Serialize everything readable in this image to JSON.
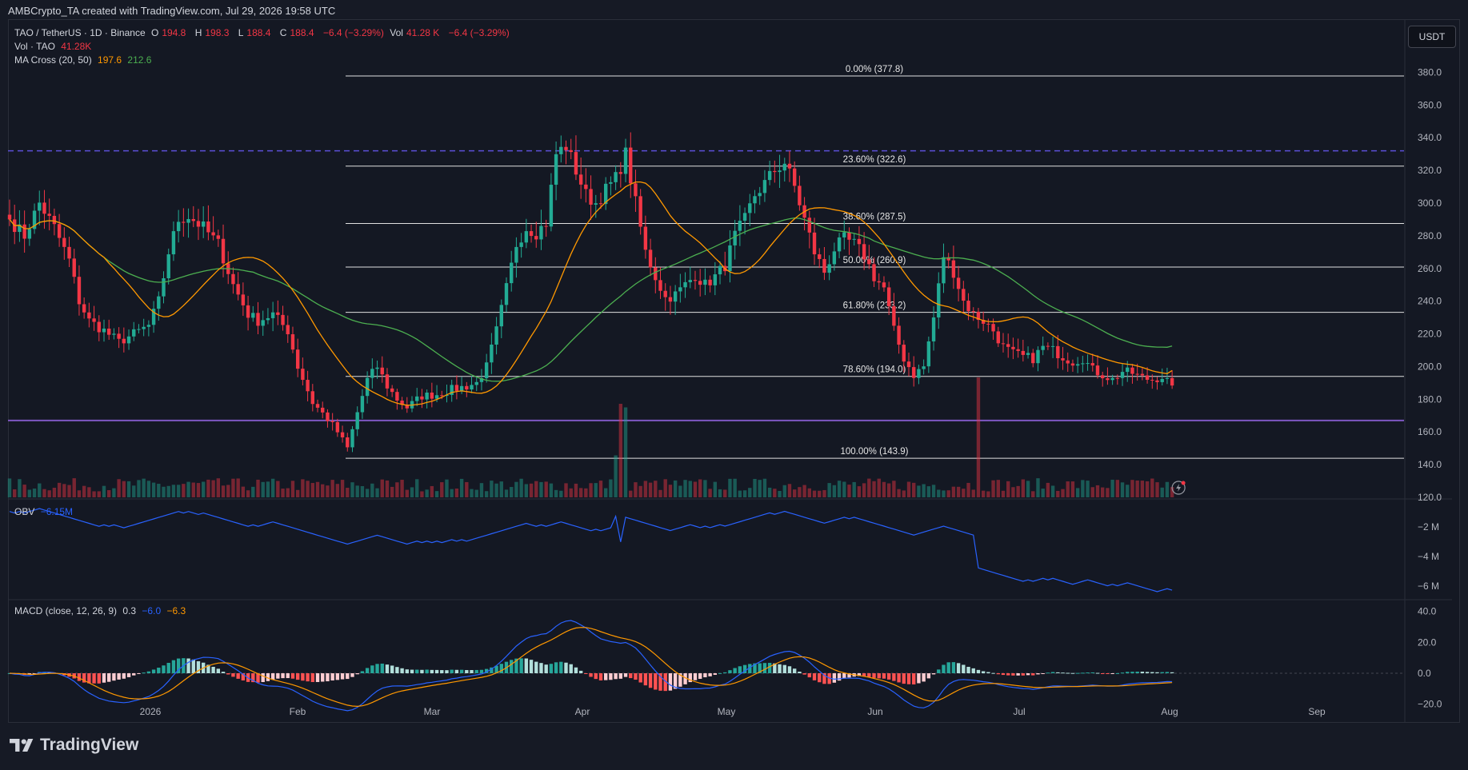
{
  "header": {
    "creator_line": "AMBCrypto_TA created with TradingView.com, Jul 29, 2026 19:58 UTC"
  },
  "legend": {
    "symbol": "TAO / TetherUS · 1D · Binance",
    "open_label": "O",
    "open": "194.8",
    "high_label": "H",
    "high": "198.3",
    "low_label": "L",
    "low": "188.4",
    "close_label": "C",
    "close": "188.4",
    "change": "−6.4 (−3.29%)",
    "vol_label": "Vol",
    "vol": "41.28 K",
    "vol_change": "−6.4 (−3.29%)",
    "vol_series": "Vol · TAO",
    "vol_series_value": "41.28K",
    "ma_label": "MA Cross (20, 50)",
    "ma20": "197.6",
    "ma50": "212.6",
    "obv_label": "OBV",
    "obv_value": "−6.15M",
    "macd_label": "MACD (close, 12, 26, 9)",
    "macd_hist": "0.3",
    "macd_line": "−6.0",
    "macd_signal": "−6.3"
  },
  "currency_button": "USDT",
  "brand": "TradingView",
  "colors": {
    "up": "#22ab94",
    "down": "#f23645",
    "ma20": "#ff9800",
    "ma50": "#4caf50",
    "obv": "#2962ff",
    "fib": "#e0e0e0",
    "support": "#7e57c2",
    "resistance": "#5b4fd6"
  },
  "icons": [
    "tradingview-logo-icon",
    "flash-alert-icon"
  ],
  "chart_data": {
    "type": "candlestick",
    "symbol": "TAO / TetherUS",
    "timeframe": "1D",
    "exchange": "Binance",
    "price_axis": {
      "ylim": [
        120,
        390
      ],
      "ticks": [
        "380.0",
        "360.0",
        "340.0",
        "320.0",
        "300.0",
        "280.0",
        "260.0",
        "240.0",
        "220.0",
        "200.0",
        "180.0",
        "160.0",
        "140.0",
        "120.0"
      ]
    },
    "time_axis": {
      "labels": [
        "2026",
        "Feb",
        "Mar",
        "Apr",
        "May",
        "Jun",
        "Jul",
        "Aug",
        "Sep"
      ]
    },
    "fib_levels": [
      {
        "label": "0.00% (377.8)",
        "price": 377.8
      },
      {
        "label": "23.60% (322.6)",
        "price": 322.6
      },
      {
        "label": "38.60% (287.5)",
        "price": 287.5
      },
      {
        "label": "50.00% (260.9)",
        "price": 260.9
      },
      {
        "label": "61.80% (233.2)",
        "price": 233.2
      },
      {
        "label": "78.60% (194.0)",
        "price": 194.0
      },
      {
        "label": "100.00% (143.9)",
        "price": 143.9
      }
    ],
    "horizontal_lines": [
      {
        "price": 332,
        "style": "dashed"
      },
      {
        "price": 167,
        "style": "solid"
      }
    ],
    "price_anchors": [
      [
        0,
        290
      ],
      [
        3,
        280
      ],
      [
        6,
        300
      ],
      [
        9,
        285
      ],
      [
        12,
        265
      ],
      [
        14,
        240
      ],
      [
        16,
        228
      ],
      [
        19,
        222
      ],
      [
        22,
        215
      ],
      [
        25,
        220
      ],
      [
        28,
        225
      ],
      [
        30,
        240
      ],
      [
        32,
        270
      ],
      [
        34,
        290
      ],
      [
        36,
        292
      ],
      [
        39,
        285
      ],
      [
        42,
        275
      ],
      [
        45,
        250
      ],
      [
        48,
        232
      ],
      [
        50,
        228
      ],
      [
        53,
        232
      ],
      [
        56,
        222
      ],
      [
        58,
        200
      ],
      [
        61,
        178
      ],
      [
        64,
        168
      ],
      [
        66,
        160
      ],
      [
        68,
        150
      ],
      [
        70,
        172
      ],
      [
        72,
        192
      ],
      [
        74,
        200
      ],
      [
        76,
        188
      ],
      [
        78,
        180
      ],
      [
        80,
        175
      ],
      [
        83,
        182
      ],
      [
        86,
        183
      ],
      [
        89,
        186
      ],
      [
        92,
        188
      ],
      [
        94,
        190
      ],
      [
        96,
        200
      ],
      [
        98,
        222
      ],
      [
        100,
        248
      ],
      [
        102,
        275
      ],
      [
        104,
        285
      ],
      [
        106,
        282
      ],
      [
        108,
        288
      ],
      [
        110,
        330
      ],
      [
        112,
        335
      ],
      [
        114,
        320
      ],
      [
        116,
        305
      ],
      [
        118,
        300
      ],
      [
        120,
        308
      ],
      [
        122,
        315
      ],
      [
        124,
        330
      ],
      [
        126,
        300
      ],
      [
        128,
        270
      ],
      [
        130,
        255
      ],
      [
        132,
        242
      ],
      [
        134,
        244
      ],
      [
        136,
        250
      ],
      [
        138,
        256
      ],
      [
        140,
        250
      ],
      [
        142,
        255
      ],
      [
        144,
        262
      ],
      [
        146,
        280
      ],
      [
        148,
        290
      ],
      [
        150,
        305
      ],
      [
        152,
        312
      ],
      [
        154,
        320
      ],
      [
        156,
        325
      ],
      [
        158,
        310
      ],
      [
        160,
        290
      ],
      [
        162,
        270
      ],
      [
        164,
        258
      ],
      [
        166,
        272
      ],
      [
        168,
        278
      ],
      [
        170,
        275
      ],
      [
        172,
        268
      ],
      [
        174,
        255
      ],
      [
        176,
        248
      ],
      [
        178,
        222
      ],
      [
        180,
        205
      ],
      [
        182,
        195
      ],
      [
        184,
        200
      ],
      [
        186,
        230
      ],
      [
        188,
        268
      ],
      [
        190,
        258
      ],
      [
        192,
        240
      ],
      [
        194,
        232
      ],
      [
        196,
        228
      ],
      [
        198,
        222
      ],
      [
        200,
        212
      ],
      [
        202,
        208
      ],
      [
        204,
        206
      ],
      [
        206,
        205
      ],
      [
        208,
        212
      ],
      [
        210,
        210
      ],
      [
        212,
        206
      ],
      [
        214,
        203
      ],
      [
        216,
        205
      ],
      [
        218,
        198
      ],
      [
        220,
        195
      ],
      [
        222,
        192
      ],
      [
        224,
        197
      ],
      [
        226,
        196
      ],
      [
        228,
        193
      ],
      [
        230,
        192
      ],
      [
        232,
        194
      ],
      [
        234,
        188.4
      ]
    ],
    "volume_spikes": [
      {
        "index": 123,
        "relative": 0.78
      },
      {
        "index": 124,
        "relative": 0.75
      },
      {
        "index": 195,
        "relative": 1.0
      },
      {
        "index": 122,
        "relative": 0.35
      }
    ],
    "obv": {
      "ticks": [
        "−2 M",
        "−4 M",
        "−6 M"
      ],
      "ylim": [
        -7,
        0
      ],
      "last": "−6.15M"
    },
    "macd": {
      "ticks": [
        "40.0",
        "20.0",
        "0.0",
        "−20.0"
      ],
      "ylim": [
        -30,
        45
      ],
      "last": {
        "hist": 0.3,
        "macd": -6.0,
        "signal": -6.3
      }
    }
  }
}
